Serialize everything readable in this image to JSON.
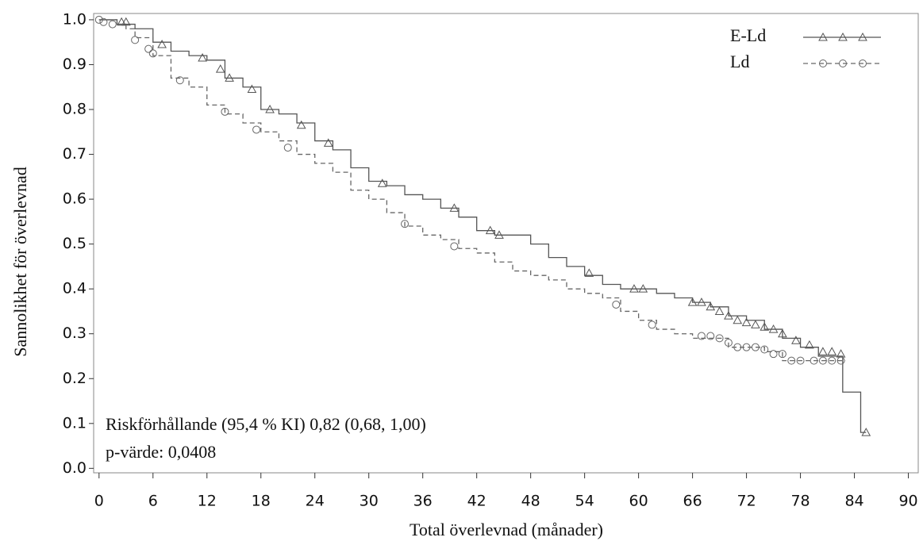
{
  "chart_data": {
    "type": "line",
    "x_label": "Total överlevnad (månader)",
    "y_label": "Sannolikhet för överlevnad",
    "annotations": [
      "Riskförhållande (95,4 % KI) 0,82 (0,68, 1,00)",
      "p-värde: 0,0408"
    ],
    "xlim": [
      -0.6,
      91.1
    ],
    "ylim": [
      -0.01,
      1.014
    ],
    "xticks": [
      0,
      6,
      12,
      18,
      24,
      30,
      36,
      42,
      48,
      54,
      60,
      66,
      72,
      78,
      84,
      90
    ],
    "yticks": [
      {
        "value": 0,
        "label": "0.0"
      },
      {
        "value": 0.1,
        "label": "0.1"
      },
      {
        "value": 0.2,
        "label": "0.2"
      },
      {
        "value": 0.3,
        "label": "0.3"
      },
      {
        "value": 0.4,
        "label": "0.4"
      },
      {
        "value": 0.5,
        "label": "0.5"
      },
      {
        "value": 0.6,
        "label": "0.6"
      },
      {
        "value": 0.7,
        "label": "0.7"
      },
      {
        "value": 0.8,
        "label": "0.8"
      },
      {
        "value": 0.9,
        "label": "0.9"
      },
      {
        "value": 1,
        "label": "1.0"
      }
    ],
    "legend": "top-right",
    "series": [
      {
        "name": "E-Ld",
        "color": "#555555",
        "dash": false,
        "marker": "triangle",
        "x": [
          0,
          2,
          4,
          6,
          8,
          10,
          12,
          14,
          16,
          18,
          20,
          22,
          24,
          26,
          28,
          30,
          32,
          34,
          36,
          38,
          40,
          42,
          44,
          46,
          48,
          50,
          52,
          54,
          56,
          58,
          60,
          62,
          64,
          66,
          68,
          70,
          72,
          74,
          76,
          78,
          80,
          82.7,
          84.7,
          85.3
        ],
        "values": [
          1.0,
          0.99,
          0.98,
          0.95,
          0.93,
          0.92,
          0.91,
          0.87,
          0.85,
          0.8,
          0.79,
          0.77,
          0.73,
          0.71,
          0.67,
          0.64,
          0.63,
          0.61,
          0.6,
          0.58,
          0.56,
          0.53,
          0.52,
          0.52,
          0.5,
          0.47,
          0.45,
          0.43,
          0.41,
          0.4,
          0.4,
          0.39,
          0.38,
          0.37,
          0.36,
          0.34,
          0.33,
          0.31,
          0.29,
          0.27,
          0.25,
          0.17,
          0.08,
          0.08
        ],
        "censor_x": [
          2.5,
          3,
          7,
          11.5,
          13.5,
          14.5,
          17,
          19,
          22.5,
          25.5,
          31.5,
          39.5,
          43.5,
          44.5,
          54.5,
          59.5,
          60.5,
          66,
          67,
          68,
          69,
          70,
          71,
          72,
          73,
          74,
          75,
          76,
          77.5,
          79,
          80.5,
          81.5,
          82.5,
          85.3
        ],
        "censor_values": [
          0.995,
          0.995,
          0.945,
          0.915,
          0.89,
          0.87,
          0.845,
          0.8,
          0.765,
          0.725,
          0.635,
          0.58,
          0.53,
          0.52,
          0.435,
          0.4,
          0.4,
          0.37,
          0.37,
          0.36,
          0.35,
          0.34,
          0.33,
          0.325,
          0.32,
          0.315,
          0.31,
          0.3,
          0.285,
          0.275,
          0.26,
          0.26,
          0.255,
          0.08
        ]
      },
      {
        "name": "Ld",
        "color": "#666666",
        "dash": true,
        "marker": "circle",
        "x": [
          0,
          2,
          3,
          4,
          6,
          8,
          10,
          12,
          14,
          16,
          18,
          20,
          22,
          24,
          26,
          28,
          30,
          32,
          34,
          36,
          38,
          40,
          42,
          44,
          46,
          48,
          50,
          52,
          54,
          56,
          58,
          60,
          62,
          64,
          66,
          68,
          70,
          72,
          74,
          76,
          78,
          80,
          82,
          83
        ],
        "values": [
          1.0,
          0.99,
          0.98,
          0.96,
          0.92,
          0.87,
          0.85,
          0.81,
          0.79,
          0.77,
          0.75,
          0.73,
          0.7,
          0.68,
          0.66,
          0.62,
          0.6,
          0.57,
          0.54,
          0.52,
          0.51,
          0.49,
          0.48,
          0.46,
          0.44,
          0.43,
          0.42,
          0.4,
          0.39,
          0.38,
          0.35,
          0.33,
          0.31,
          0.3,
          0.29,
          0.29,
          0.27,
          0.27,
          0.26,
          0.24,
          0.24,
          0.24,
          0.24,
          0.24
        ],
        "censor_x": [
          0,
          0.5,
          1.5,
          4,
          5.5,
          6,
          9,
          14,
          17.5,
          21,
          34,
          39.5,
          57.5,
          61.5,
          67,
          68,
          69,
          70,
          71,
          72,
          73,
          74,
          75,
          76,
          77,
          78,
          79.5,
          80.5,
          81.5,
          82.5
        ],
        "censor_values": [
          1.0,
          0.995,
          0.99,
          0.955,
          0.935,
          0.925,
          0.865,
          0.795,
          0.755,
          0.715,
          0.545,
          0.495,
          0.365,
          0.32,
          0.295,
          0.295,
          0.29,
          0.28,
          0.27,
          0.27,
          0.27,
          0.265,
          0.255,
          0.255,
          0.24,
          0.24,
          0.24,
          0.24,
          0.24,
          0.24
        ]
      }
    ]
  }
}
